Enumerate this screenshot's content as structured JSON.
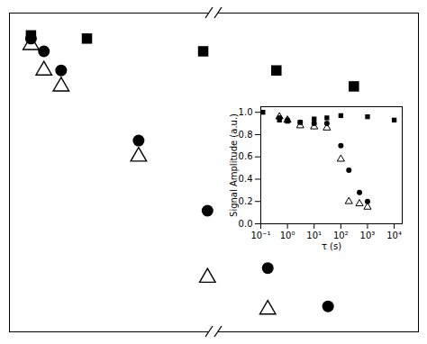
{
  "chart_data": [
    {
      "type": "scatter",
      "xlim": [
        0,
        0.95
      ],
      "ylim": [
        0,
        1
      ],
      "tick_labels": false,
      "series": [
        {
          "marker": "square",
          "color": "black",
          "x": [
            0.05,
            0.18,
            0.45,
            0.62,
            0.8
          ],
          "values": [
            0.93,
            0.92,
            0.88,
            0.82,
            0.77
          ]
        },
        {
          "marker": "circle",
          "color": "black",
          "x": [
            0.05,
            0.08,
            0.12,
            0.3,
            0.46,
            0.6,
            0.74
          ],
          "values": [
            0.92,
            0.88,
            0.82,
            0.6,
            0.38,
            0.2,
            0.08
          ]
        },
        {
          "marker": "open-triangle",
          "color": "black",
          "x": [
            0.05,
            0.08,
            0.12,
            0.3,
            0.46,
            0.6
          ],
          "values": [
            0.9,
            0.82,
            0.77,
            0.55,
            0.17,
            0.07
          ]
        }
      ]
    },
    {
      "type": "scatter",
      "xlabel": "τ (s)",
      "ylabel": "Signal Amplitude (a.u.)",
      "log": "x",
      "xlim": [
        0.1,
        20000
      ],
      "xticks": [
        {
          "value": 0.1,
          "label": "10⁻¹"
        },
        {
          "value": 1,
          "label": "10⁰"
        },
        {
          "value": 10,
          "label": "10¹"
        },
        {
          "value": 100,
          "label": "10²"
        },
        {
          "value": 1000,
          "label": "10³"
        },
        {
          "value": 10000,
          "label": "10⁴"
        }
      ],
      "ylim": [
        0,
        1.05
      ],
      "yticks": [
        {
          "value": 0,
          "label": "0.0"
        },
        0.2,
        0.4,
        0.6,
        0.8,
        {
          "value": 1,
          "label": "1.0"
        }
      ],
      "series": [
        {
          "marker": "square",
          "color": "black",
          "x": [
            0.12,
            0.5,
            1.0,
            3.0,
            10.0,
            30.0,
            100.0,
            1000.0,
            10000.0
          ],
          "values": [
            1.0,
            0.93,
            0.92,
            0.91,
            0.94,
            0.95,
            0.97,
            0.96,
            0.93
          ]
        },
        {
          "marker": "circle",
          "color": "black",
          "x": [
            0.5,
            1.0,
            3.0,
            10.0,
            30.0,
            100.0,
            200.0,
            500.0,
            1000.0
          ],
          "values": [
            0.95,
            0.93,
            0.91,
            0.9,
            0.9,
            0.7,
            0.48,
            0.28,
            0.2
          ]
        },
        {
          "marker": "open-triangle",
          "color": "black",
          "x": [
            0.5,
            1.0,
            3.0,
            10.0,
            30.0,
            100.0,
            200.0,
            500.0,
            1000.0
          ],
          "values": [
            0.96,
            0.93,
            0.88,
            0.87,
            0.86,
            0.58,
            0.2,
            0.18,
            0.15
          ]
        }
      ]
    }
  ]
}
